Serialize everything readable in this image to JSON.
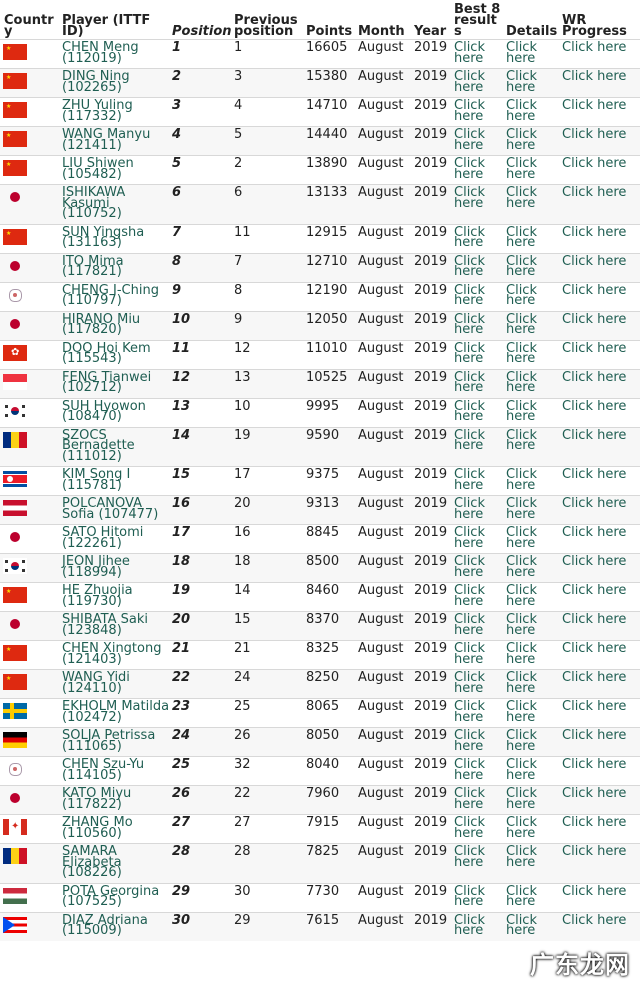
{
  "headers": {
    "country": "Country",
    "player": "Player (ITTF ID)",
    "position": "Position",
    "previous": "Previous position",
    "points": "Points",
    "month": "Month",
    "year": "Year",
    "best8": "Best 8 results",
    "details": "Details",
    "wr": "WR Progress"
  },
  "link_text": "Click here",
  "colors": {
    "link": "#1f5e52",
    "separator": "#d8d8d8"
  },
  "watermark": "广东龙网",
  "rows": [
    {
      "flag": "china-flag",
      "player": "CHEN Meng (112019)",
      "position": "1",
      "previous": "1",
      "points": "16605",
      "month": "August",
      "year": "2019"
    },
    {
      "flag": "china-flag",
      "player": "DING Ning (102265)",
      "position": "2",
      "previous": "3",
      "points": "15380",
      "month": "August",
      "year": "2019"
    },
    {
      "flag": "china-flag",
      "player": "ZHU Yuling (117332)",
      "position": "3",
      "previous": "4",
      "points": "14710",
      "month": "August",
      "year": "2019"
    },
    {
      "flag": "china-flag",
      "player": "WANG Manyu (121411)",
      "position": "4",
      "previous": "5",
      "points": "14440",
      "month": "August",
      "year": "2019"
    },
    {
      "flag": "china-flag",
      "player": "LIU Shiwen (105482)",
      "position": "5",
      "previous": "2",
      "points": "13890",
      "month": "August",
      "year": "2019"
    },
    {
      "flag": "japan-flag",
      "player": "ISHIKAWA Kasumi (110752)",
      "position": "6",
      "previous": "6",
      "points": "13133",
      "month": "August",
      "year": "2019"
    },
    {
      "flag": "china-flag",
      "player": "SUN Yingsha (131163)",
      "position": "7",
      "previous": "11",
      "points": "12915",
      "month": "August",
      "year": "2019"
    },
    {
      "flag": "japan-flag",
      "player": "ITO Mima (117821)",
      "position": "8",
      "previous": "7",
      "points": "12710",
      "month": "August",
      "year": "2019"
    },
    {
      "flag": "chinese-taipei-flag",
      "player": "CHENG I-Ching (110797)",
      "position": "9",
      "previous": "8",
      "points": "12190",
      "month": "August",
      "year": "2019"
    },
    {
      "flag": "japan-flag",
      "player": "HIRANO Miu (117820)",
      "position": "10",
      "previous": "9",
      "points": "12050",
      "month": "August",
      "year": "2019"
    },
    {
      "flag": "hong-kong-flag",
      "player": "DOO Hoi Kem (115543)",
      "position": "11",
      "previous": "12",
      "points": "11010",
      "month": "August",
      "year": "2019"
    },
    {
      "flag": "singapore-flag",
      "player": "FENG Tianwei (102712)",
      "position": "12",
      "previous": "13",
      "points": "10525",
      "month": "August",
      "year": "2019"
    },
    {
      "flag": "korea-flag",
      "player": "SUH Hyowon (108470)",
      "position": "13",
      "previous": "10",
      "points": "9995",
      "month": "August",
      "year": "2019"
    },
    {
      "flag": "romania-flag",
      "player": "SZOCS Bernadette (111012)",
      "position": "14",
      "previous": "19",
      "points": "9590",
      "month": "August",
      "year": "2019"
    },
    {
      "flag": "north-korea-flag",
      "player": "KIM Song I (115781)",
      "position": "15",
      "previous": "17",
      "points": "9375",
      "month": "August",
      "year": "2019"
    },
    {
      "flag": "austria-flag",
      "player": "POLCANOVA Sofia (107477)",
      "position": "16",
      "previous": "20",
      "points": "9313",
      "month": "August",
      "year": "2019"
    },
    {
      "flag": "japan-flag",
      "player": "SATO Hitomi (122261)",
      "position": "17",
      "previous": "16",
      "points": "8845",
      "month": "August",
      "year": "2019"
    },
    {
      "flag": "korea-flag",
      "player": "JEON Jihee (118994)",
      "position": "18",
      "previous": "18",
      "points": "8500",
      "month": "August",
      "year": "2019"
    },
    {
      "flag": "china-flag",
      "player": "HE Zhuojia (119730)",
      "position": "19",
      "previous": "14",
      "points": "8460",
      "month": "August",
      "year": "2019"
    },
    {
      "flag": "japan-flag",
      "player": "SHIBATA Saki (123848)",
      "position": "20",
      "previous": "15",
      "points": "8370",
      "month": "August",
      "year": "2019"
    },
    {
      "flag": "china-flag",
      "player": "CHEN Xingtong (121403)",
      "position": "21",
      "previous": "21",
      "points": "8325",
      "month": "August",
      "year": "2019"
    },
    {
      "flag": "china-flag",
      "player": "WANG Yidi (124110)",
      "position": "22",
      "previous": "24",
      "points": "8250",
      "month": "August",
      "year": "2019"
    },
    {
      "flag": "sweden-flag",
      "player": "EKHOLM Matilda (102472)",
      "position": "23",
      "previous": "25",
      "points": "8065",
      "month": "August",
      "year": "2019"
    },
    {
      "flag": "germany-flag",
      "player": "SOLJA Petrissa (111065)",
      "position": "24",
      "previous": "26",
      "points": "8050",
      "month": "August",
      "year": "2019"
    },
    {
      "flag": "chinese-taipei-flag",
      "player": "CHEN Szu-Yu (114105)",
      "position": "25",
      "previous": "32",
      "points": "8040",
      "month": "August",
      "year": "2019"
    },
    {
      "flag": "japan-flag",
      "player": "KATO Miyu (117822)",
      "position": "26",
      "previous": "22",
      "points": "7960",
      "month": "August",
      "year": "2019"
    },
    {
      "flag": "canada-flag",
      "player": "ZHANG Mo (110560)",
      "position": "27",
      "previous": "27",
      "points": "7915",
      "month": "August",
      "year": "2019"
    },
    {
      "flag": "romania-flag",
      "player": "SAMARA Elizabeta (108226)",
      "position": "28",
      "previous": "28",
      "points": "7825",
      "month": "August",
      "year": "2019"
    },
    {
      "flag": "hungary-flag",
      "player": "POTA Georgina (107525)",
      "position": "29",
      "previous": "30",
      "points": "7730",
      "month": "August",
      "year": "2019"
    },
    {
      "flag": "puerto-rico-flag",
      "player": "DIAZ Adriana (115009)",
      "position": "30",
      "previous": "29",
      "points": "7615",
      "month": "August",
      "year": "2019"
    }
  ]
}
